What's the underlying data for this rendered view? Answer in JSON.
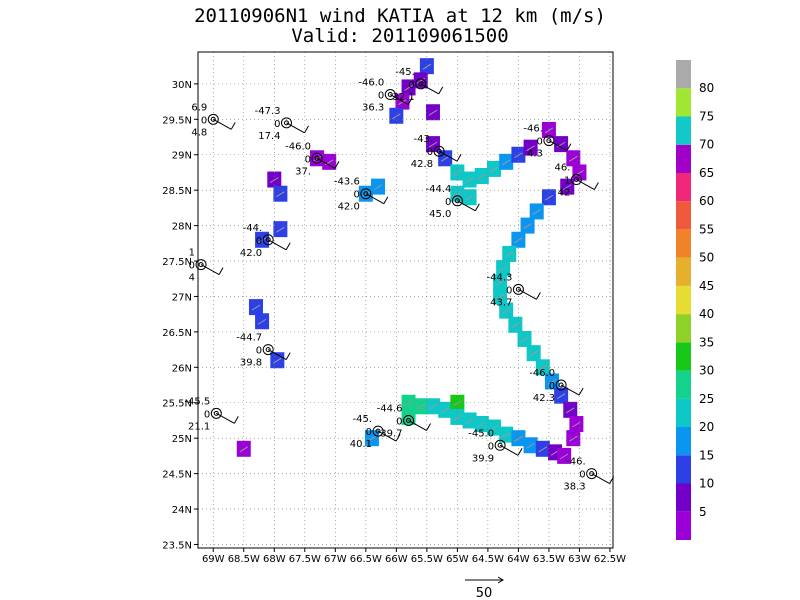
{
  "header": {
    "title_line1": "20110906N1 wind KATIA at 12 km (m/s)",
    "title_line2": "Valid: 201109061500"
  },
  "chart_data": {
    "type": "heatmap",
    "title": "20110906N1 wind KATIA at 12 km (m/s)",
    "subtitle": "Valid: 201109061500",
    "x_tick_labels": [
      "69W",
      "68.5W",
      "68W",
      "67.5W",
      "67W",
      "66.5W",
      "66W",
      "65.5W",
      "65W",
      "64.5W",
      "64W",
      "63.5W",
      "63W",
      "62.5W"
    ],
    "x_tick_values": [
      -69,
      -68.5,
      -68,
      -67.5,
      -67,
      -66.5,
      -66,
      -65.5,
      -65,
      -64.5,
      -64,
      -63.5,
      -63,
      -62.5
    ],
    "y_tick_labels": [
      "23.5N",
      "24N",
      "24.5N",
      "25N",
      "25.5N",
      "26N",
      "26.5N",
      "27N",
      "27.5N",
      "28N",
      "28.5N",
      "29N",
      "29.5N",
      "30N"
    ],
    "y_tick_values": [
      23.5,
      24,
      24.5,
      25,
      25.5,
      26,
      26.5,
      27,
      27.5,
      28,
      28.5,
      29,
      29.5,
      30
    ],
    "xlim": [
      -69.25,
      -62.45
    ],
    "ylim": [
      23.45,
      30.45
    ],
    "grid": true,
    "colorbar": {
      "tick_labels": [
        "5",
        "10",
        "15",
        "20",
        "25",
        "30",
        "35",
        "40",
        "45",
        "50",
        "55",
        "60",
        "65",
        "70",
        "75",
        "80"
      ],
      "colors": [
        "#9b00d6",
        "#7300c8",
        "#2c40e6",
        "#0a96f0",
        "#0ec8c8",
        "#12d28c",
        "#18c818",
        "#8ed228",
        "#e6dc32",
        "#e6af2d",
        "#f08228",
        "#f05a3c",
        "#f0287a",
        "#a000c8",
        "#13c8c8",
        "#a0e632",
        "#aaaaaa"
      ]
    },
    "cells": [
      {
        "lon": -65.5,
        "lat": 30.25,
        "c": 2
      },
      {
        "lon": -65.6,
        "lat": 30.05,
        "c": 1
      },
      {
        "lon": -65.8,
        "lat": 29.95,
        "c": 1
      },
      {
        "lon": -65.9,
        "lat": 29.75,
        "c": 0
      },
      {
        "lon": -66.0,
        "lat": 29.55,
        "c": 2
      },
      {
        "lon": -65.4,
        "lat": 29.6,
        "c": 1
      },
      {
        "lon": -67.3,
        "lat": 28.95,
        "c": 0
      },
      {
        "lon": -67.1,
        "lat": 28.9,
        "c": 0
      },
      {
        "lon": -68.0,
        "lat": 28.65,
        "c": 1
      },
      {
        "lon": -67.9,
        "lat": 28.45,
        "c": 2
      },
      {
        "lon": -66.3,
        "lat": 28.55,
        "c": 3
      },
      {
        "lon": -66.5,
        "lat": 28.45,
        "c": 3
      },
      {
        "lon": -68.2,
        "lat": 27.8,
        "c": 2
      },
      {
        "lon": -67.9,
        "lat": 27.95,
        "c": 2
      },
      {
        "lon": -68.3,
        "lat": 26.85,
        "c": 2
      },
      {
        "lon": -68.2,
        "lat": 26.65,
        "c": 2
      },
      {
        "lon": -67.95,
        "lat": 26.1,
        "c": 2
      },
      {
        "lon": -68.5,
        "lat": 24.85,
        "c": 0
      },
      {
        "lon": -66.4,
        "lat": 25.0,
        "c": 3
      },
      {
        "lon": -65.4,
        "lat": 29.15,
        "c": 1
      },
      {
        "lon": -65.2,
        "lat": 28.95,
        "c": 2
      },
      {
        "lon": -65.0,
        "lat": 28.75,
        "c": 4
      },
      {
        "lon": -64.8,
        "lat": 28.65,
        "c": 4
      },
      {
        "lon": -64.6,
        "lat": 28.7,
        "c": 4
      },
      {
        "lon": -64.4,
        "lat": 28.8,
        "c": 4
      },
      {
        "lon": -64.2,
        "lat": 28.9,
        "c": 3
      },
      {
        "lon": -64.0,
        "lat": 29.0,
        "c": 2
      },
      {
        "lon": -63.8,
        "lat": 29.1,
        "c": 1
      },
      {
        "lon": -65.0,
        "lat": 28.45,
        "c": 4
      },
      {
        "lon": -64.8,
        "lat": 28.4,
        "c": 4
      },
      {
        "lon": -63.5,
        "lat": 29.35,
        "c": 0
      },
      {
        "lon": -63.3,
        "lat": 29.15,
        "c": 1
      },
      {
        "lon": -63.1,
        "lat": 28.95,
        "c": 0
      },
      {
        "lon": -63.0,
        "lat": 28.75,
        "c": 0
      },
      {
        "lon": -63.2,
        "lat": 28.55,
        "c": 1
      },
      {
        "lon": -63.5,
        "lat": 28.4,
        "c": 2
      },
      {
        "lon": -63.7,
        "lat": 28.2,
        "c": 3
      },
      {
        "lon": -63.85,
        "lat": 28.0,
        "c": 3
      },
      {
        "lon": -64.0,
        "lat": 27.8,
        "c": 3
      },
      {
        "lon": -64.15,
        "lat": 27.6,
        "c": 4
      },
      {
        "lon": -64.25,
        "lat": 27.4,
        "c": 4
      },
      {
        "lon": -64.3,
        "lat": 27.2,
        "c": 4
      },
      {
        "lon": -64.3,
        "lat": 27.0,
        "c": 4
      },
      {
        "lon": -64.2,
        "lat": 26.8,
        "c": 4
      },
      {
        "lon": -64.05,
        "lat": 26.6,
        "c": 4
      },
      {
        "lon": -63.9,
        "lat": 26.4,
        "c": 4
      },
      {
        "lon": -63.75,
        "lat": 26.2,
        "c": 4
      },
      {
        "lon": -63.6,
        "lat": 26.0,
        "c": 4
      },
      {
        "lon": -63.45,
        "lat": 25.8,
        "c": 3
      },
      {
        "lon": -63.3,
        "lat": 25.6,
        "c": 2
      },
      {
        "lon": -63.15,
        "lat": 25.4,
        "c": 1
      },
      {
        "lon": -63.05,
        "lat": 25.2,
        "c": 0
      },
      {
        "lon": -63.1,
        "lat": 25.0,
        "c": 0
      },
      {
        "lon": -65.8,
        "lat": 25.5,
        "c": 5
      },
      {
        "lon": -65.8,
        "lat": 25.3,
        "c": 5
      },
      {
        "lon": -65.6,
        "lat": 25.45,
        "c": 5
      },
      {
        "lon": -65.4,
        "lat": 25.45,
        "c": 4
      },
      {
        "lon": -65.2,
        "lat": 25.4,
        "c": 4
      },
      {
        "lon": -65.0,
        "lat": 25.5,
        "c": 6
      },
      {
        "lon": -65.0,
        "lat": 25.3,
        "c": 4
      },
      {
        "lon": -64.8,
        "lat": 25.25,
        "c": 4
      },
      {
        "lon": -64.6,
        "lat": 25.2,
        "c": 4
      },
      {
        "lon": -64.4,
        "lat": 25.15,
        "c": 4
      },
      {
        "lon": -64.2,
        "lat": 25.05,
        "c": 4
      },
      {
        "lon": -64.0,
        "lat": 25.0,
        "c": 3
      },
      {
        "lon": -63.8,
        "lat": 24.9,
        "c": 3
      },
      {
        "lon": -63.6,
        "lat": 24.85,
        "c": 2
      },
      {
        "lon": -63.4,
        "lat": 24.8,
        "c": 1
      },
      {
        "lon": -63.25,
        "lat": 24.75,
        "c": 0
      }
    ],
    "stations": [
      {
        "lon": -65.6,
        "lat": 30.0,
        "labels": [
          "-45.",
          "0",
          "32.1"
        ]
      },
      {
        "lon": -66.1,
        "lat": 29.85,
        "labels": [
          "-46.0",
          "0",
          "36.3"
        ]
      },
      {
        "lon": -69.0,
        "lat": 29.5,
        "labels": [
          "6.9",
          "0",
          "4.8"
        ]
      },
      {
        "lon": -67.8,
        "lat": 29.45,
        "labels": [
          "-47.3",
          "0",
          "17.4"
        ]
      },
      {
        "lon": -67.3,
        "lat": 28.95,
        "labels": [
          "-46.0",
          "0",
          "37."
        ]
      },
      {
        "lon": -65.3,
        "lat": 29.05,
        "labels": [
          "-43.",
          "0",
          "42.8"
        ]
      },
      {
        "lon": -63.5,
        "lat": 29.2,
        "labels": [
          "-46.",
          "0",
          "4.3"
        ]
      },
      {
        "lon": -63.05,
        "lat": 28.65,
        "labels": [
          "46.",
          "1",
          "42"
        ]
      },
      {
        "lon": -66.5,
        "lat": 28.45,
        "labels": [
          "-43.6",
          "0",
          "42.0"
        ]
      },
      {
        "lon": -65.0,
        "lat": 28.35,
        "labels": [
          "-44.4",
          "0",
          "45.0"
        ]
      },
      {
        "lon": -68.1,
        "lat": 27.8,
        "labels": [
          "-44.",
          "0",
          "42.0"
        ]
      },
      {
        "lon": -69.2,
        "lat": 27.45,
        "labels": [
          "1",
          "0",
          "4"
        ]
      },
      {
        "lon": -64.0,
        "lat": 27.1,
        "labels": [
          "-44.3",
          "0",
          "43.7"
        ]
      },
      {
        "lon": -68.1,
        "lat": 26.25,
        "labels": [
          "-44.7",
          "0",
          "39.8"
        ]
      },
      {
        "lon": -63.3,
        "lat": 25.75,
        "labels": [
          "-46.0",
          "0",
          "42.3"
        ]
      },
      {
        "lon": -68.95,
        "lat": 25.35,
        "labels": [
          "-45.5",
          "0",
          "21.1"
        ]
      },
      {
        "lon": -66.3,
        "lat": 25.1,
        "labels": [
          "-45.",
          "0",
          "40.1"
        ]
      },
      {
        "lon": -65.8,
        "lat": 25.25,
        "labels": [
          "-44.6",
          "0",
          "39.7"
        ]
      },
      {
        "lon": -64.3,
        "lat": 24.9,
        "labels": [
          "-45.0",
          "0",
          "39.9"
        ]
      },
      {
        "lon": -62.8,
        "lat": 24.5,
        "labels": [
          "-46.",
          "0",
          "38.3"
        ]
      }
    ],
    "reference_vector": {
      "label": "50"
    }
  }
}
